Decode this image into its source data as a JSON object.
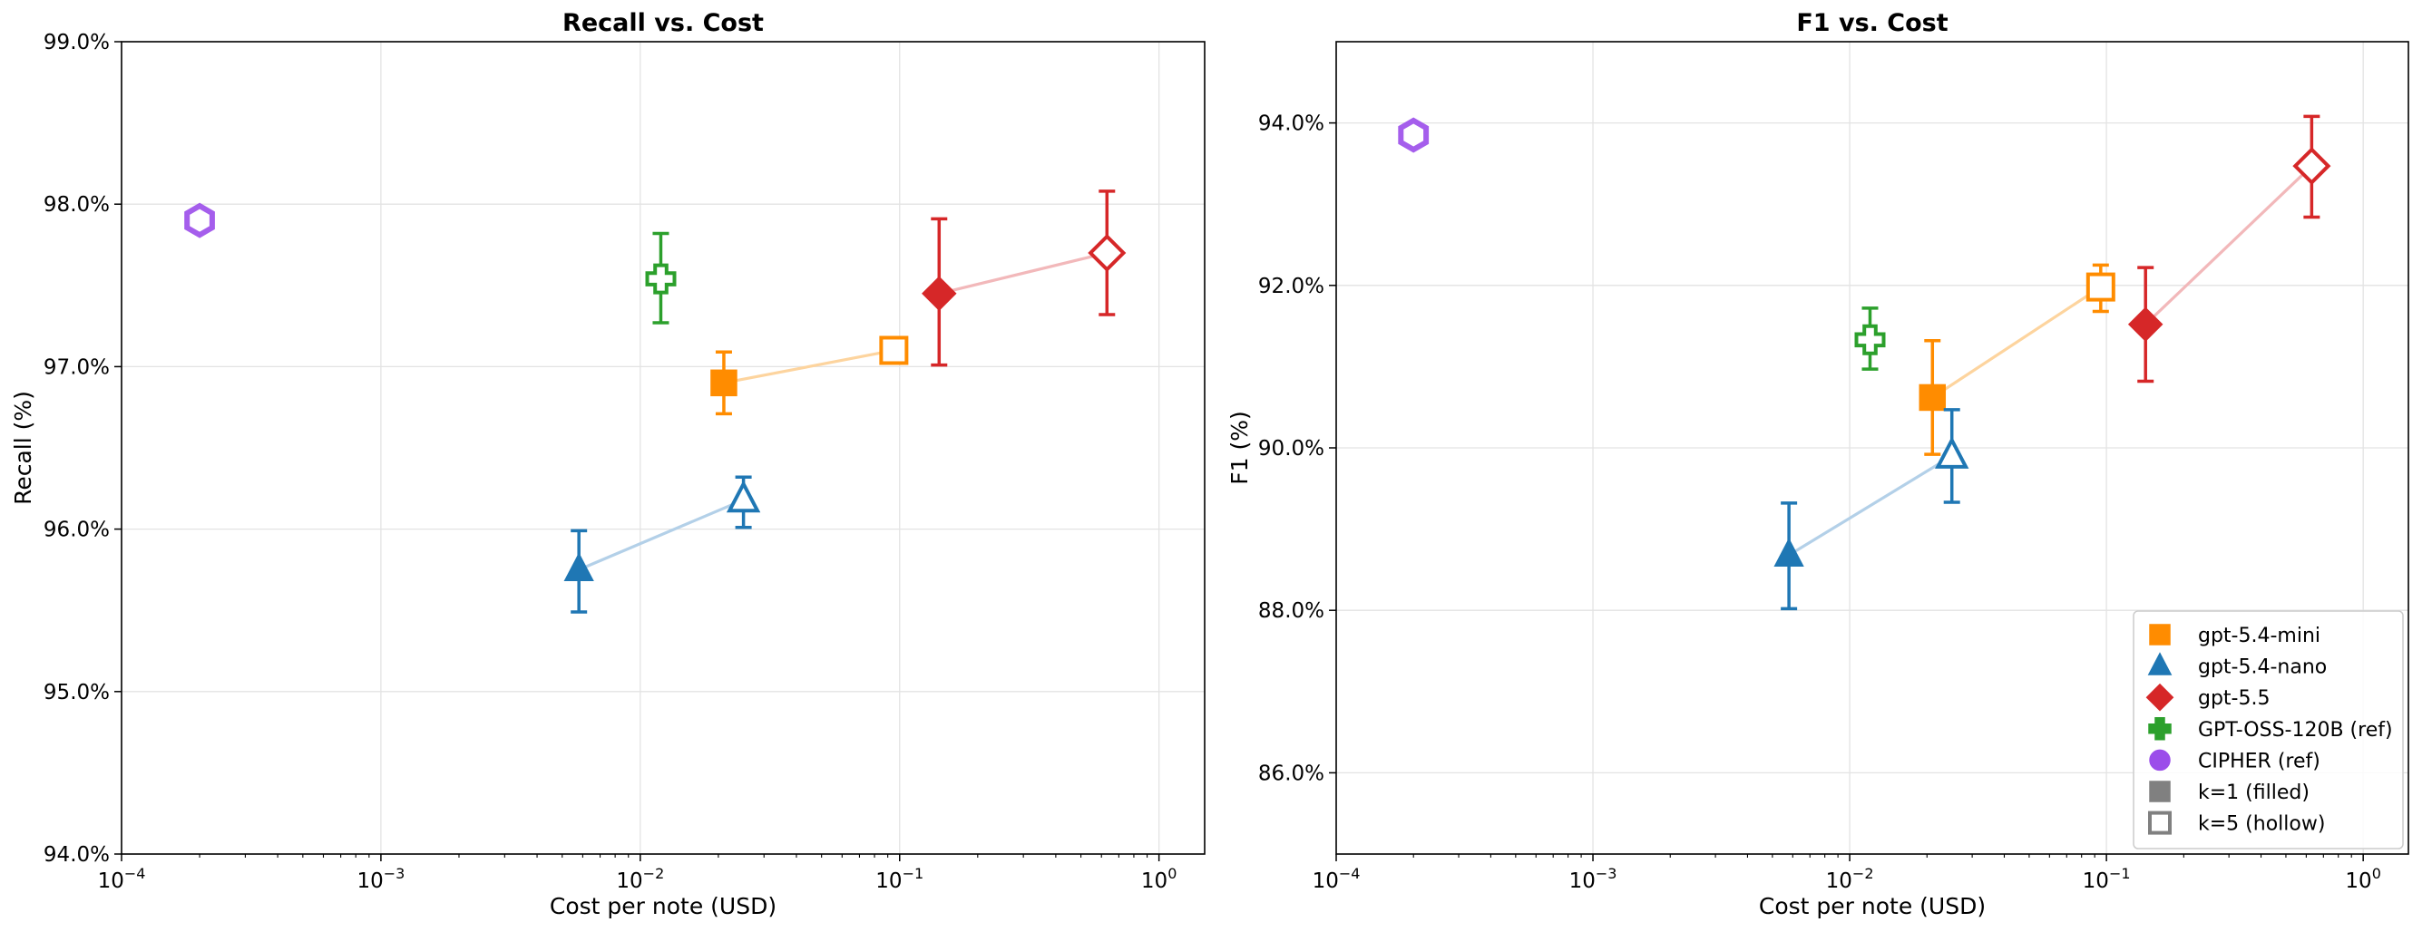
{
  "colors": {
    "gpt-5.4-mini": "#ff8c00",
    "gpt-5.4-nano": "#1f77b4",
    "gpt-5.5": "#d62728",
    "GPT-OSS-120B (ref)": "#2ca02c",
    "CIPHER (ref)": "#9b4dea",
    "k_marker": "#808080"
  },
  "legend": {
    "position": "lower-right",
    "entries": [
      {
        "label": "gpt-5.4-mini",
        "marker": "square",
        "color": "#ff8c00",
        "style": "filled"
      },
      {
        "label": "gpt-5.4-nano",
        "marker": "triangle",
        "color": "#1f77b4",
        "style": "filled"
      },
      {
        "label": "gpt-5.5",
        "marker": "diamond",
        "color": "#d62728",
        "style": "filled"
      },
      {
        "label": "GPT-OSS-120B (ref)",
        "marker": "plus",
        "color": "#2ca02c",
        "style": "filled"
      },
      {
        "label": "CIPHER (ref)",
        "marker": "circle",
        "color": "#9b4dea",
        "style": "filled"
      },
      {
        "label": "k=1 (filled)",
        "marker": "square",
        "color": "#808080",
        "style": "filled"
      },
      {
        "label": "k=5 (hollow)",
        "marker": "square",
        "color": "#808080",
        "style": "hollow"
      }
    ]
  },
  "chart_data": [
    {
      "type": "scatter",
      "title": "Recall vs. Cost",
      "xlabel": "Cost per note (USD)",
      "ylabel": "Recall (%)",
      "xscale": "log",
      "xlim": [
        0.0001,
        1.5
      ],
      "ylim": [
        94.0,
        99.0
      ],
      "xticks": [
        {
          "base": "10",
          "exp": "−4"
        },
        {
          "base": "10",
          "exp": "−3"
        },
        {
          "base": "10",
          "exp": "−2"
        },
        {
          "base": "10",
          "exp": "−1"
        },
        {
          "base": "10",
          "exp": "0"
        }
      ],
      "yticks": [
        "94.0%",
        "95.0%",
        "96.0%",
        "97.0%",
        "98.0%",
        "99.0%"
      ],
      "grid": true,
      "series": [
        {
          "name": "gpt-5.4-mini",
          "marker": "square",
          "points": [
            {
              "k": 1,
              "x": 0.021,
              "y": 96.9,
              "err_low": 96.71,
              "err_high": 97.09
            },
            {
              "k": 5,
              "x": 0.095,
              "y": 97.1,
              "err_low": 97.04,
              "err_high": 97.16
            }
          ]
        },
        {
          "name": "gpt-5.4-nano",
          "marker": "triangle",
          "points": [
            {
              "k": 1,
              "x": 0.0058,
              "y": 95.75,
              "err_low": 95.49,
              "err_high": 95.99
            },
            {
              "k": 5,
              "x": 0.025,
              "y": 96.18,
              "err_low": 96.01,
              "err_high": 96.32
            }
          ]
        },
        {
          "name": "gpt-5.5",
          "marker": "diamond",
          "points": [
            {
              "k": 1,
              "x": 0.142,
              "y": 97.45,
              "err_low": 97.01,
              "err_high": 97.91
            },
            {
              "k": 5,
              "x": 0.63,
              "y": 97.7,
              "err_low": 97.32,
              "err_high": 98.08
            }
          ]
        },
        {
          "name": "GPT-OSS-120B (ref)",
          "marker": "plus",
          "points": [
            {
              "k": 5,
              "x": 0.012,
              "y": 97.54,
              "err_low": 97.27,
              "err_high": 97.82
            }
          ]
        },
        {
          "name": "CIPHER (ref)",
          "marker": "hexagon",
          "points": [
            {
              "k": 5,
              "x": 0.0002,
              "y": 97.9,
              "err_low": 97.9,
              "err_high": 97.9
            }
          ]
        }
      ]
    },
    {
      "type": "scatter",
      "title": "F1 vs. Cost",
      "xlabel": "Cost per note (USD)",
      "ylabel": "F1 (%)",
      "xscale": "log",
      "xlim": [
        0.0001,
        1.5
      ],
      "ylim": [
        85.0,
        95.0
      ],
      "xticks": [
        {
          "base": "10",
          "exp": "−4"
        },
        {
          "base": "10",
          "exp": "−3"
        },
        {
          "base": "10",
          "exp": "−2"
        },
        {
          "base": "10",
          "exp": "−1"
        },
        {
          "base": "10",
          "exp": "0"
        }
      ],
      "yticks": [
        "86.0%",
        "88.0%",
        "90.0%",
        "92.0%",
        "94.0%"
      ],
      "grid": true,
      "series": [
        {
          "name": "gpt-5.4-mini",
          "marker": "square",
          "points": [
            {
              "k": 1,
              "x": 0.021,
              "y": 90.62,
              "err_low": 89.92,
              "err_high": 91.32
            },
            {
              "k": 5,
              "x": 0.095,
              "y": 91.98,
              "err_low": 91.68,
              "err_high": 92.25
            }
          ]
        },
        {
          "name": "gpt-5.4-nano",
          "marker": "triangle",
          "points": [
            {
              "k": 1,
              "x": 0.0058,
              "y": 88.68,
              "err_low": 88.02,
              "err_high": 89.32
            },
            {
              "k": 5,
              "x": 0.025,
              "y": 89.9,
              "err_low": 89.33,
              "err_high": 90.47
            }
          ]
        },
        {
          "name": "gpt-5.5",
          "marker": "diamond",
          "points": [
            {
              "k": 1,
              "x": 0.142,
              "y": 91.52,
              "err_low": 90.82,
              "err_high": 92.22
            },
            {
              "k": 5,
              "x": 0.63,
              "y": 93.47,
              "err_low": 92.84,
              "err_high": 94.08
            }
          ]
        },
        {
          "name": "GPT-OSS-120B (ref)",
          "marker": "plus",
          "points": [
            {
              "k": 5,
              "x": 0.012,
              "y": 91.33,
              "err_low": 90.97,
              "err_high": 91.72
            }
          ]
        },
        {
          "name": "CIPHER (ref)",
          "marker": "hexagon",
          "points": [
            {
              "k": 5,
              "x": 0.0002,
              "y": 93.85,
              "err_low": 93.85,
              "err_high": 93.85
            }
          ]
        }
      ]
    }
  ]
}
